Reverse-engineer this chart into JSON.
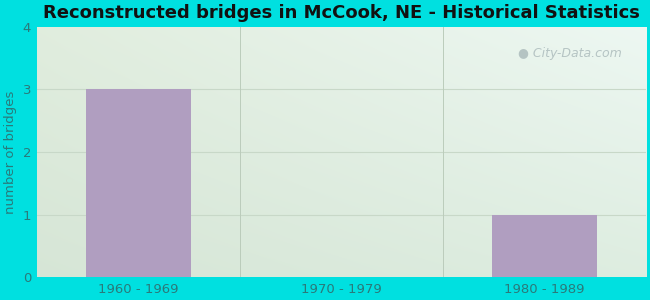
{
  "title": "Reconstructed bridges in McCook, NE - Historical Statistics",
  "categories": [
    "1960 - 1969",
    "1970 - 1979",
    "1980 - 1989"
  ],
  "values": [
    3,
    0,
    1
  ],
  "bar_color": "#b09ec0",
  "ylabel": "number of bridges",
  "ylim": [
    0,
    4
  ],
  "yticks": [
    0,
    1,
    2,
    3,
    4
  ],
  "background_outer": "#00e0e0",
  "bg_color_topleft": "#e0ede0",
  "bg_color_topright": "#e8f4f0",
  "bg_color_bottomleft": "#d8ead8",
  "bg_color_bottomright": "#e0eee8",
  "title_fontsize": 13,
  "axis_label_color": "#2a7a7a",
  "tick_label_color": "#2a7a7a",
  "watermark_text": "City-Data.com",
  "watermark_color": "#b0bfbf",
  "grid_color": "#c8d8c8",
  "bar_bottom_line_color": "#aaaaaa"
}
